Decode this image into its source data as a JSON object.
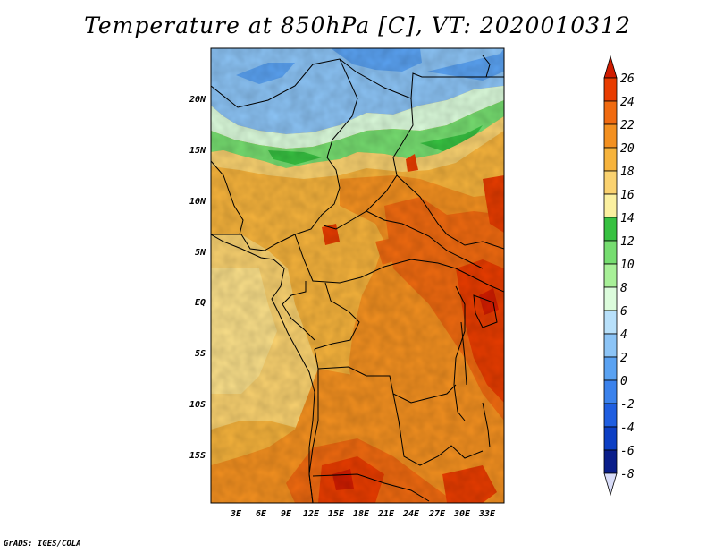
{
  "title": "Temperature at 850hPa [C], VT: 2020010312",
  "credit": "GrADS: IGES/COLA",
  "map": {
    "lon_labels": [
      "3E",
      "6E",
      "9E",
      "12E",
      "15E",
      "18E",
      "21E",
      "24E",
      "27E",
      "30E",
      "33E"
    ],
    "lat_labels": [
      "20N",
      "15N",
      "10N",
      "5N",
      "EQ",
      "5S",
      "10S",
      "15S"
    ]
  },
  "colorbar": {
    "labels": [
      "26",
      "24",
      "22",
      "20",
      "18",
      "16",
      "14",
      "12",
      "10",
      "8",
      "6",
      "4",
      "2",
      "0",
      "-2",
      "-4",
      "-6",
      "-8"
    ],
    "colors": [
      "#d01c00",
      "#e83c00",
      "#f06a10",
      "#f39020",
      "#f6b33c",
      "#fad270",
      "#fbf0a0",
      "#37c141",
      "#76dd70",
      "#a8f098",
      "#dcfcdc",
      "#b8e0fa",
      "#8cc4f6",
      "#5aa2f2",
      "#3b82ec",
      "#1f5ee0",
      "#0d3fc4",
      "#0a1e8a",
      "#040666"
    ],
    "top_color": "#d01c00",
    "bottom_color": "#d8dcf8"
  },
  "legend": {
    "field": "Temperature at 850hPa",
    "units": "C"
  }
}
